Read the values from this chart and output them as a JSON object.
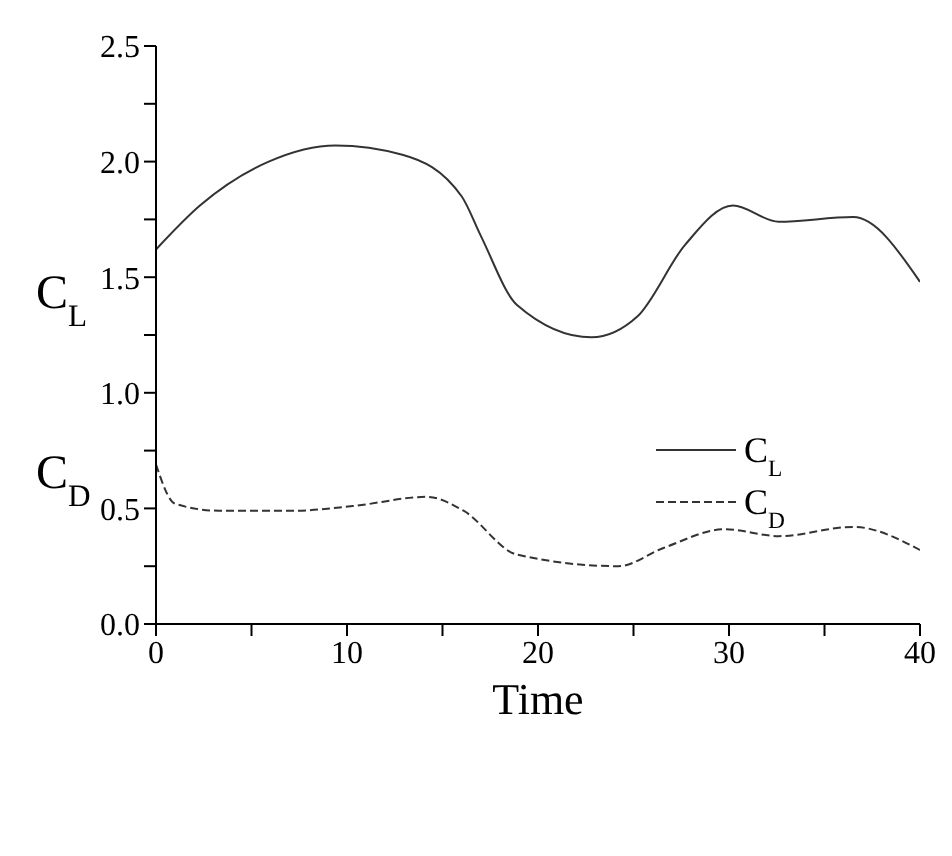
{
  "chart_data": {
    "type": "line",
    "xlabel": "Time",
    "ylabel": "C$_{L}$",
    "annotations": [
      "C$_{D}$"
    ],
    "xlim": [
      0,
      40
    ],
    "ylim": [
      0,
      2.5
    ],
    "xticks": [
      0,
      {
        "value": 5,
        "label": null
      },
      10,
      {
        "value": 15,
        "label": null
      },
      20,
      {
        "value": 25,
        "label": null
      },
      30,
      {
        "value": 35,
        "label": null
      },
      40
    ],
    "yticks": [
      {
        "value": 0,
        "label": "0.0"
      },
      {
        "value": 0.25,
        "label": null
      },
      {
        "value": 0.5,
        "label": "0.5"
      },
      {
        "value": 0.75,
        "label": null
      },
      {
        "value": 1,
        "label": "1.0"
      },
      {
        "value": 1.25,
        "label": null
      },
      {
        "value": 1.5,
        "label": "1.5"
      },
      {
        "value": 1.75,
        "label": null
      },
      {
        "value": 2,
        "label": "2.0"
      },
      {
        "value": 2.25,
        "label": null
      },
      {
        "value": 2.5,
        "label": "2.5"
      }
    ],
    "grid": false,
    "legend": "right",
    "marker": "none",
    "series": [
      {
        "name": "C$_{L}$",
        "color": "#333333",
        "line_style": "solid",
        "x": [
          0,
          2.3,
          5.9,
          9.4,
          12.9,
          16,
          17,
          18.9,
          22.8,
          25.2,
          27.7,
          30.2,
          32.6,
          36.5,
          40
        ],
        "values": [
          1.62,
          1.81,
          2.0,
          2.07,
          2.03,
          1.85,
          1.68,
          1.38,
          1.24,
          1.33,
          1.64,
          1.81,
          1.74,
          1.76,
          1.48
        ]
      },
      {
        "name": "C$_{D}$",
        "color": "#333333",
        "line_style": "dashed",
        "x": [
          0,
          1,
          3.3,
          7.2,
          10.3,
          14.2,
          16.1,
          18.9,
          24.2,
          26.6,
          29.8,
          32.6,
          36.5,
          40
        ],
        "values": [
          0.69,
          0.52,
          0.49,
          0.49,
          0.51,
          0.55,
          0.49,
          0.3,
          0.25,
          0.33,
          0.41,
          0.38,
          0.42,
          0.32
        ]
      }
    ]
  }
}
